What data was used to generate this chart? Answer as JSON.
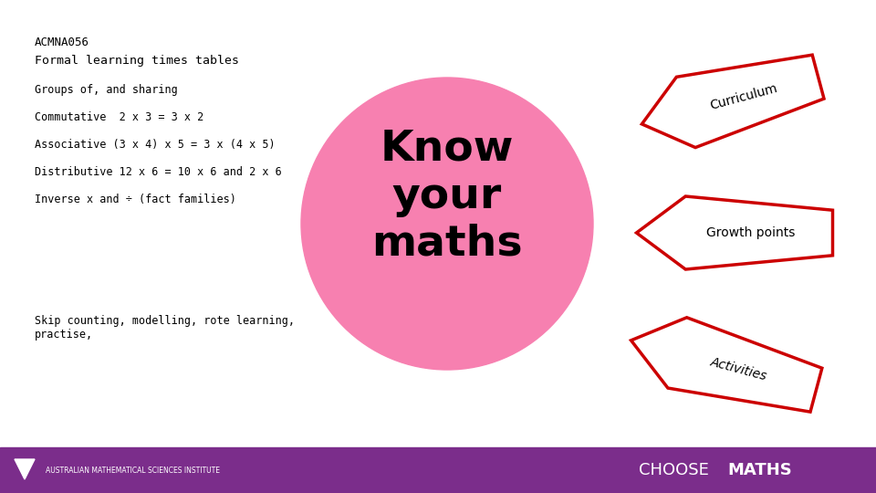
{
  "bg_color": "#ffffff",
  "footer_color": "#7b2d8b",
  "footer_text_left": "AUSTRALIAN MATHEMATICAL SCIENCES INSTITUTE",
  "footer_text_right_choose": "CHOOSE",
  "footer_text_right_maths": "MATHS",
  "acmna_text": "ACMNA056",
  "subtitle_text": "Formal learning times tables",
  "bullet_lines": [
    "Groups of, and sharing",
    "Commutative  2 x 3 = 3 x 2",
    "Associative (3 x 4) x 5 = 3 x (4 x 5)",
    "Distributive 12 x 6 = 10 x 6 and 2 x 6",
    "Inverse x and ÷ (fact families)"
  ],
  "skip_text": "Skip counting, modelling, rote learning,\npractise,",
  "circle_color": "#f780b0",
  "know_text": "Know\nyour\nmaths",
  "arrow_color_fill": "#ffffff",
  "arrow_color_edge": "#cc0000",
  "curriculum_text": "Curriculum",
  "growth_text": "Growth points",
  "activities_text": "Activities"
}
